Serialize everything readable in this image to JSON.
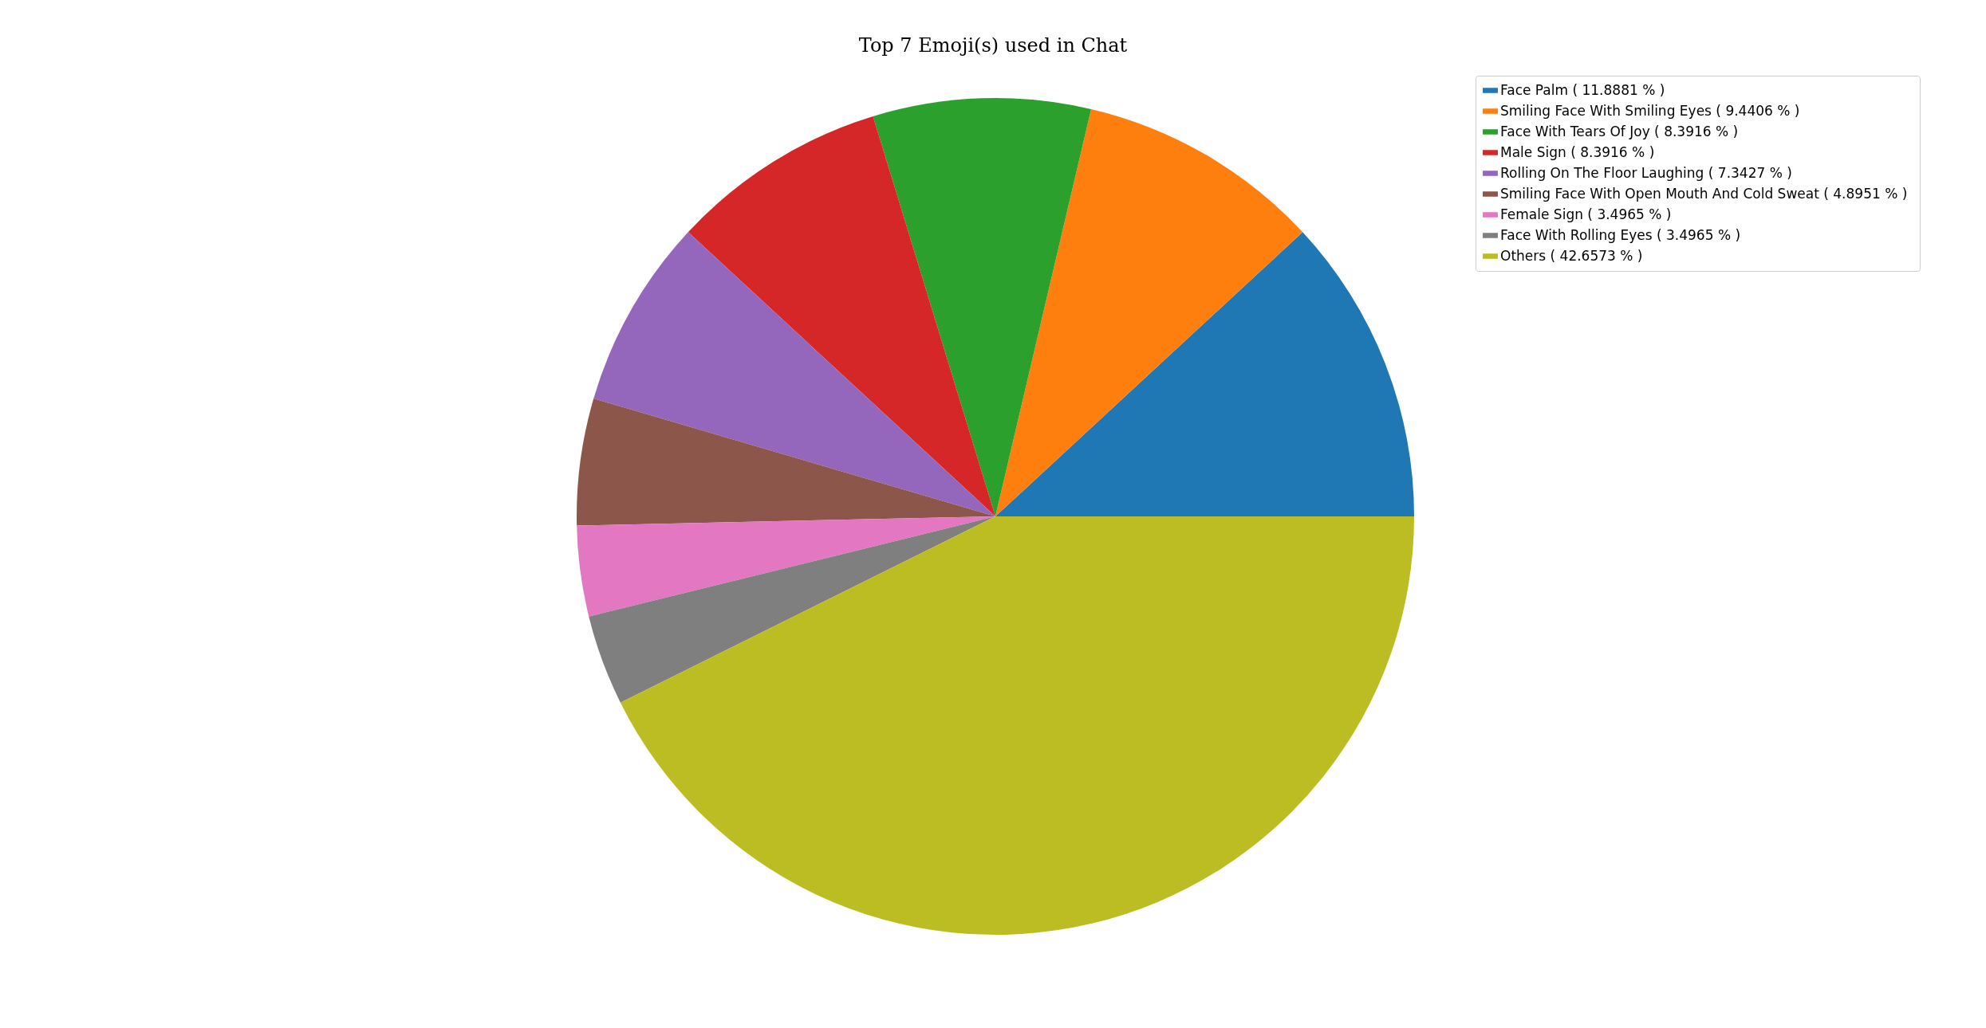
{
  "chart_data": {
    "type": "pie",
    "title": "Top 7 Emoji(s) used in Chat",
    "categories": [
      "Face Palm ( 11.8881 % )",
      "Smiling Face With Smiling Eyes (  9.4406 % )",
      "Face With Tears Of Joy (  8.3916 % )",
      "Male Sign (  8.3916 % )",
      "Rolling On The Floor Laughing (  7.3427 % )",
      "Smiling Face With Open Mouth And Cold Sweat (  4.8951 % )",
      "Female Sign (  3.4965 % )",
      "Face With Rolling Eyes (  3.4965 % )",
      "Others ( 42.6573 % )"
    ],
    "values": [
      11.8881,
      9.4406,
      8.3916,
      8.3916,
      7.3427,
      4.8951,
      3.4965,
      3.4965,
      42.6573
    ],
    "colors": [
      "#1f77b4",
      "#ff7f0e",
      "#2ca02c",
      "#d62728",
      "#9467bd",
      "#8c564b",
      "#e377c2",
      "#7f7f7f",
      "#bcbd22"
    ],
    "legend": "top right"
  }
}
